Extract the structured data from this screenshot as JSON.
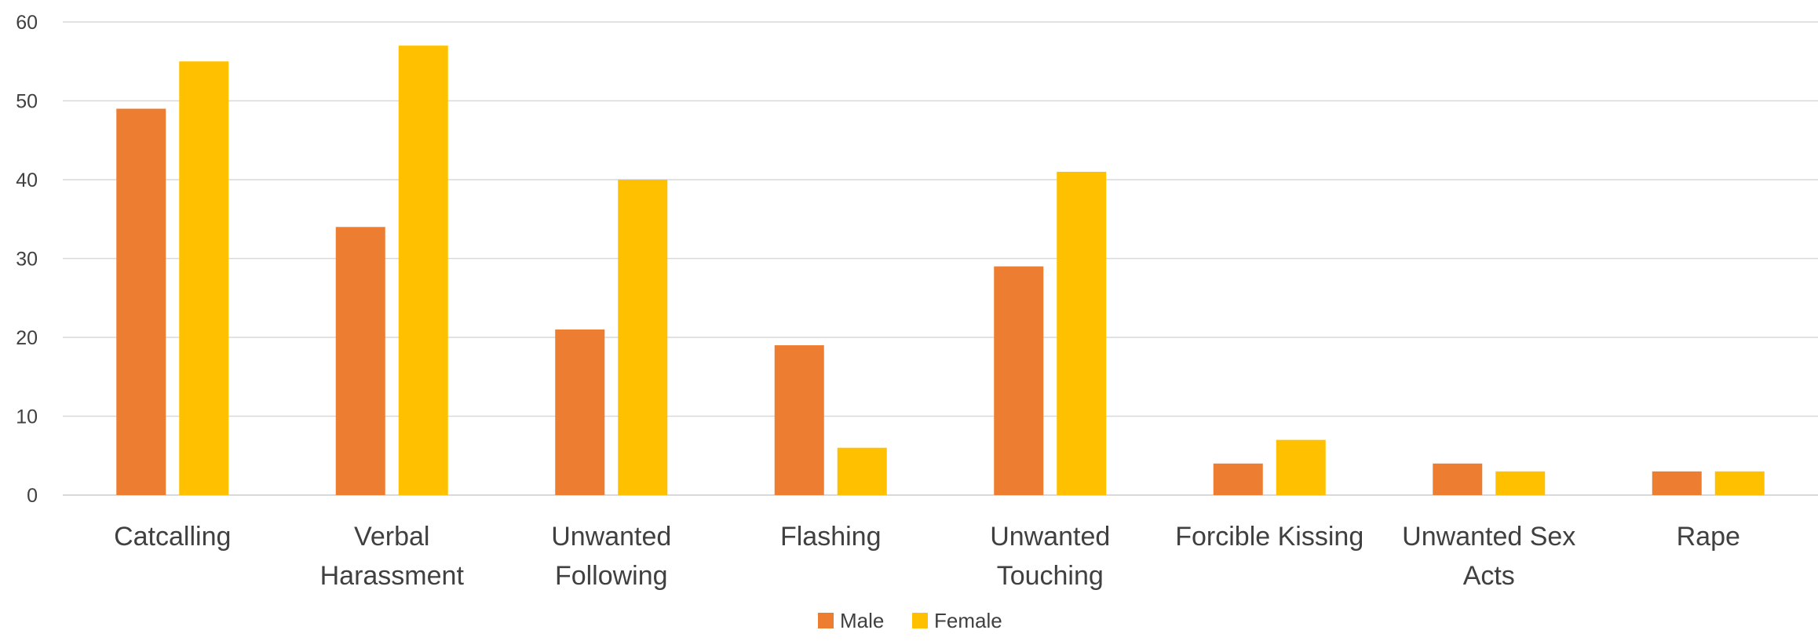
{
  "chart_data": {
    "type": "bar",
    "categories": [
      [
        "Catcalling"
      ],
      [
        "Verbal",
        "Harassment"
      ],
      [
        "Unwanted",
        "Following"
      ],
      [
        "Flashing"
      ],
      [
        "Unwanted",
        "Touching"
      ],
      [
        "Forcible Kissing"
      ],
      [
        "Unwanted Sex",
        "Acts"
      ],
      [
        "Rape"
      ]
    ],
    "series": [
      {
        "name": "Male",
        "color": "#ED7D31",
        "values": [
          49,
          34,
          21,
          19,
          29,
          4,
          4,
          3
        ]
      },
      {
        "name": "Female",
        "color": "#FFC000",
        "values": [
          55,
          57,
          40,
          6,
          41,
          7,
          3,
          3
        ]
      }
    ],
    "ylim": [
      0,
      60
    ],
    "yticks": [
      0,
      10,
      20,
      30,
      40,
      50,
      60
    ],
    "grid": true,
    "legend": "bottom-center",
    "gridline_color": "#D9D9D9",
    "text_color": "#404040"
  }
}
